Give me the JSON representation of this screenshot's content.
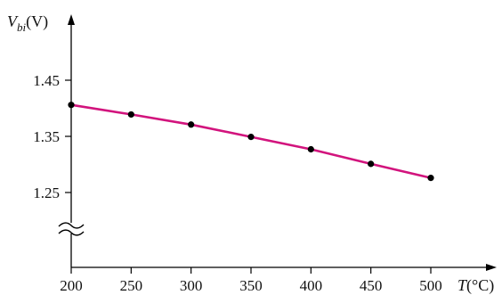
{
  "chart_data": {
    "type": "line",
    "title": "",
    "xlabel": {
      "symbol": "T",
      "unit": "(°C)"
    },
    "ylabel": {
      "symbol": "V",
      "subscript": "bi",
      "unit": "(V)"
    },
    "x_ticks": [
      "200",
      "250",
      "300",
      "350",
      "400",
      "450",
      "500"
    ],
    "y_ticks": [
      "1.25",
      "1.35",
      "1.45"
    ],
    "xlim": [
      200,
      500
    ],
    "ylim": [
      1.25,
      1.45
    ],
    "axis_break": "y-axis below 1.25",
    "grid": false,
    "legend": "none",
    "series": [
      {
        "color": "#d2147d",
        "marker_color": "#000000",
        "x": [
          200,
          250,
          300,
          350,
          400,
          450,
          500
        ],
        "y": [
          1.406,
          1.389,
          1.371,
          1.349,
          1.327,
          1.301,
          1.276
        ]
      }
    ]
  }
}
